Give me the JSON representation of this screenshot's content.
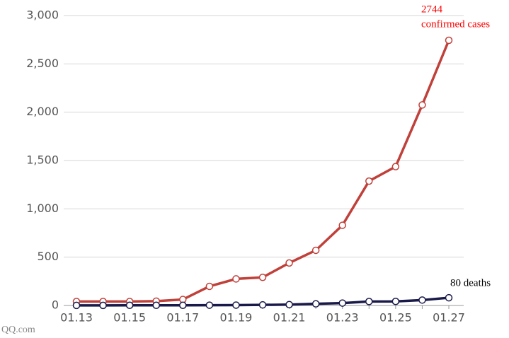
{
  "chart_data": {
    "type": "line",
    "categories": [
      "01.13",
      null,
      "01.15",
      null,
      "01.17",
      null,
      "01.19",
      null,
      "01.21",
      null,
      "01.23",
      null,
      "01.25",
      null,
      "01.27"
    ],
    "series": [
      {
        "color": "#c0403a",
        "values": [
          41,
          41,
          41,
          45,
          62,
          198,
          275,
          291,
          440,
          571,
          830,
          1287,
          1437,
          2075,
          2744
        ]
      },
      {
        "color": "#1a1a4a",
        "values": [
          1,
          1,
          2,
          2,
          2,
          3,
          4,
          6,
          9,
          17,
          25,
          41,
          42,
          56,
          80
        ]
      }
    ],
    "ylim": [
      0,
      3000
    ],
    "yticks": [
      0,
      500,
      {
        "value": 1000,
        "label": "1,000"
      },
      {
        "value": 1500,
        "label": "1,500"
      },
      {
        "value": 2000,
        "label": "2,000"
      },
      {
        "value": 2500,
        "label": "2,500"
      },
      {
        "value": 3000,
        "label": "3,000"
      }
    ],
    "grid": true,
    "annotations": [
      {
        "lines": [
          "2744",
          "confirmed cases"
        ],
        "color": "#ff0000"
      },
      {
        "lines": [
          "80 deaths"
        ],
        "color": "#000000"
      }
    ],
    "source": "QQ.com"
  }
}
